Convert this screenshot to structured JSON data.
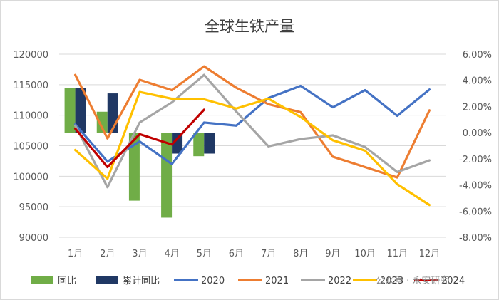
{
  "chart_data": {
    "type": "bar+line",
    "title": "全球生铁产量",
    "categories": [
      "1月",
      "2月",
      "3月",
      "4月",
      "5月",
      "6月",
      "7月",
      "8月",
      "9月",
      "10月",
      "11月",
      "12月"
    ],
    "left_axis": {
      "min": 90000,
      "max": 120000,
      "ticks": [
        "120000",
        "115000",
        "110000",
        "105000",
        "100000",
        "95000",
        "90000"
      ]
    },
    "right_axis": {
      "min": -0.08,
      "max": 0.06,
      "ticks": [
        "6.00%",
        "4.00%",
        "2.00%",
        "0.00%",
        "-2.00%",
        "-4.00%",
        "-6.00%",
        "-8.00%"
      ]
    },
    "bar_series": [
      {
        "name": "同比",
        "color": "#70ad47",
        "axis": "right",
        "values": [
          0.034,
          0.016,
          -0.052,
          -0.065,
          -0.018
        ]
      },
      {
        "name": "累计同比",
        "color": "#203864",
        "axis": "right",
        "values": [
          0.034,
          0.03,
          null,
          -0.016,
          -0.016
        ]
      }
    ],
    "line_series": [
      {
        "name": "2020",
        "color": "#4472c4",
        "axis": "left",
        "values": [
          108500,
          102400,
          105700,
          102000,
          108800,
          108300,
          112800,
          114800,
          111300,
          114100,
          109900,
          114200
        ]
      },
      {
        "name": "2021",
        "color": "#ed7d31",
        "axis": "left",
        "values": [
          116600,
          106200,
          115800,
          114100,
          118000,
          114500,
          111800,
          110500,
          103200,
          101500,
          99800,
          110800
        ]
      },
      {
        "name": "2022",
        "color": "#a5a5a5",
        "axis": "left",
        "values": [
          108300,
          98200,
          108800,
          112100,
          116600,
          110600,
          104900,
          106100,
          106700,
          104800,
          100700,
          102600
        ]
      },
      {
        "name": "2023",
        "color": "#ffc000",
        "axis": "left",
        "values": [
          104300,
          99600,
          113800,
          112700,
          112600,
          111100,
          112700,
          109700,
          105900,
          104200,
          98700,
          95300
        ]
      },
      {
        "name": "2024",
        "color": "#c00000",
        "axis": "left",
        "values": [
          107800,
          101500,
          106900,
          105200,
          110900
        ]
      }
    ],
    "legend": [
      "同比",
      "累计同比",
      "2020",
      "2021",
      "2022",
      "2023",
      "2024"
    ],
    "legend_position": "bottom"
  },
  "watermark": "公众号 · 永安研究"
}
